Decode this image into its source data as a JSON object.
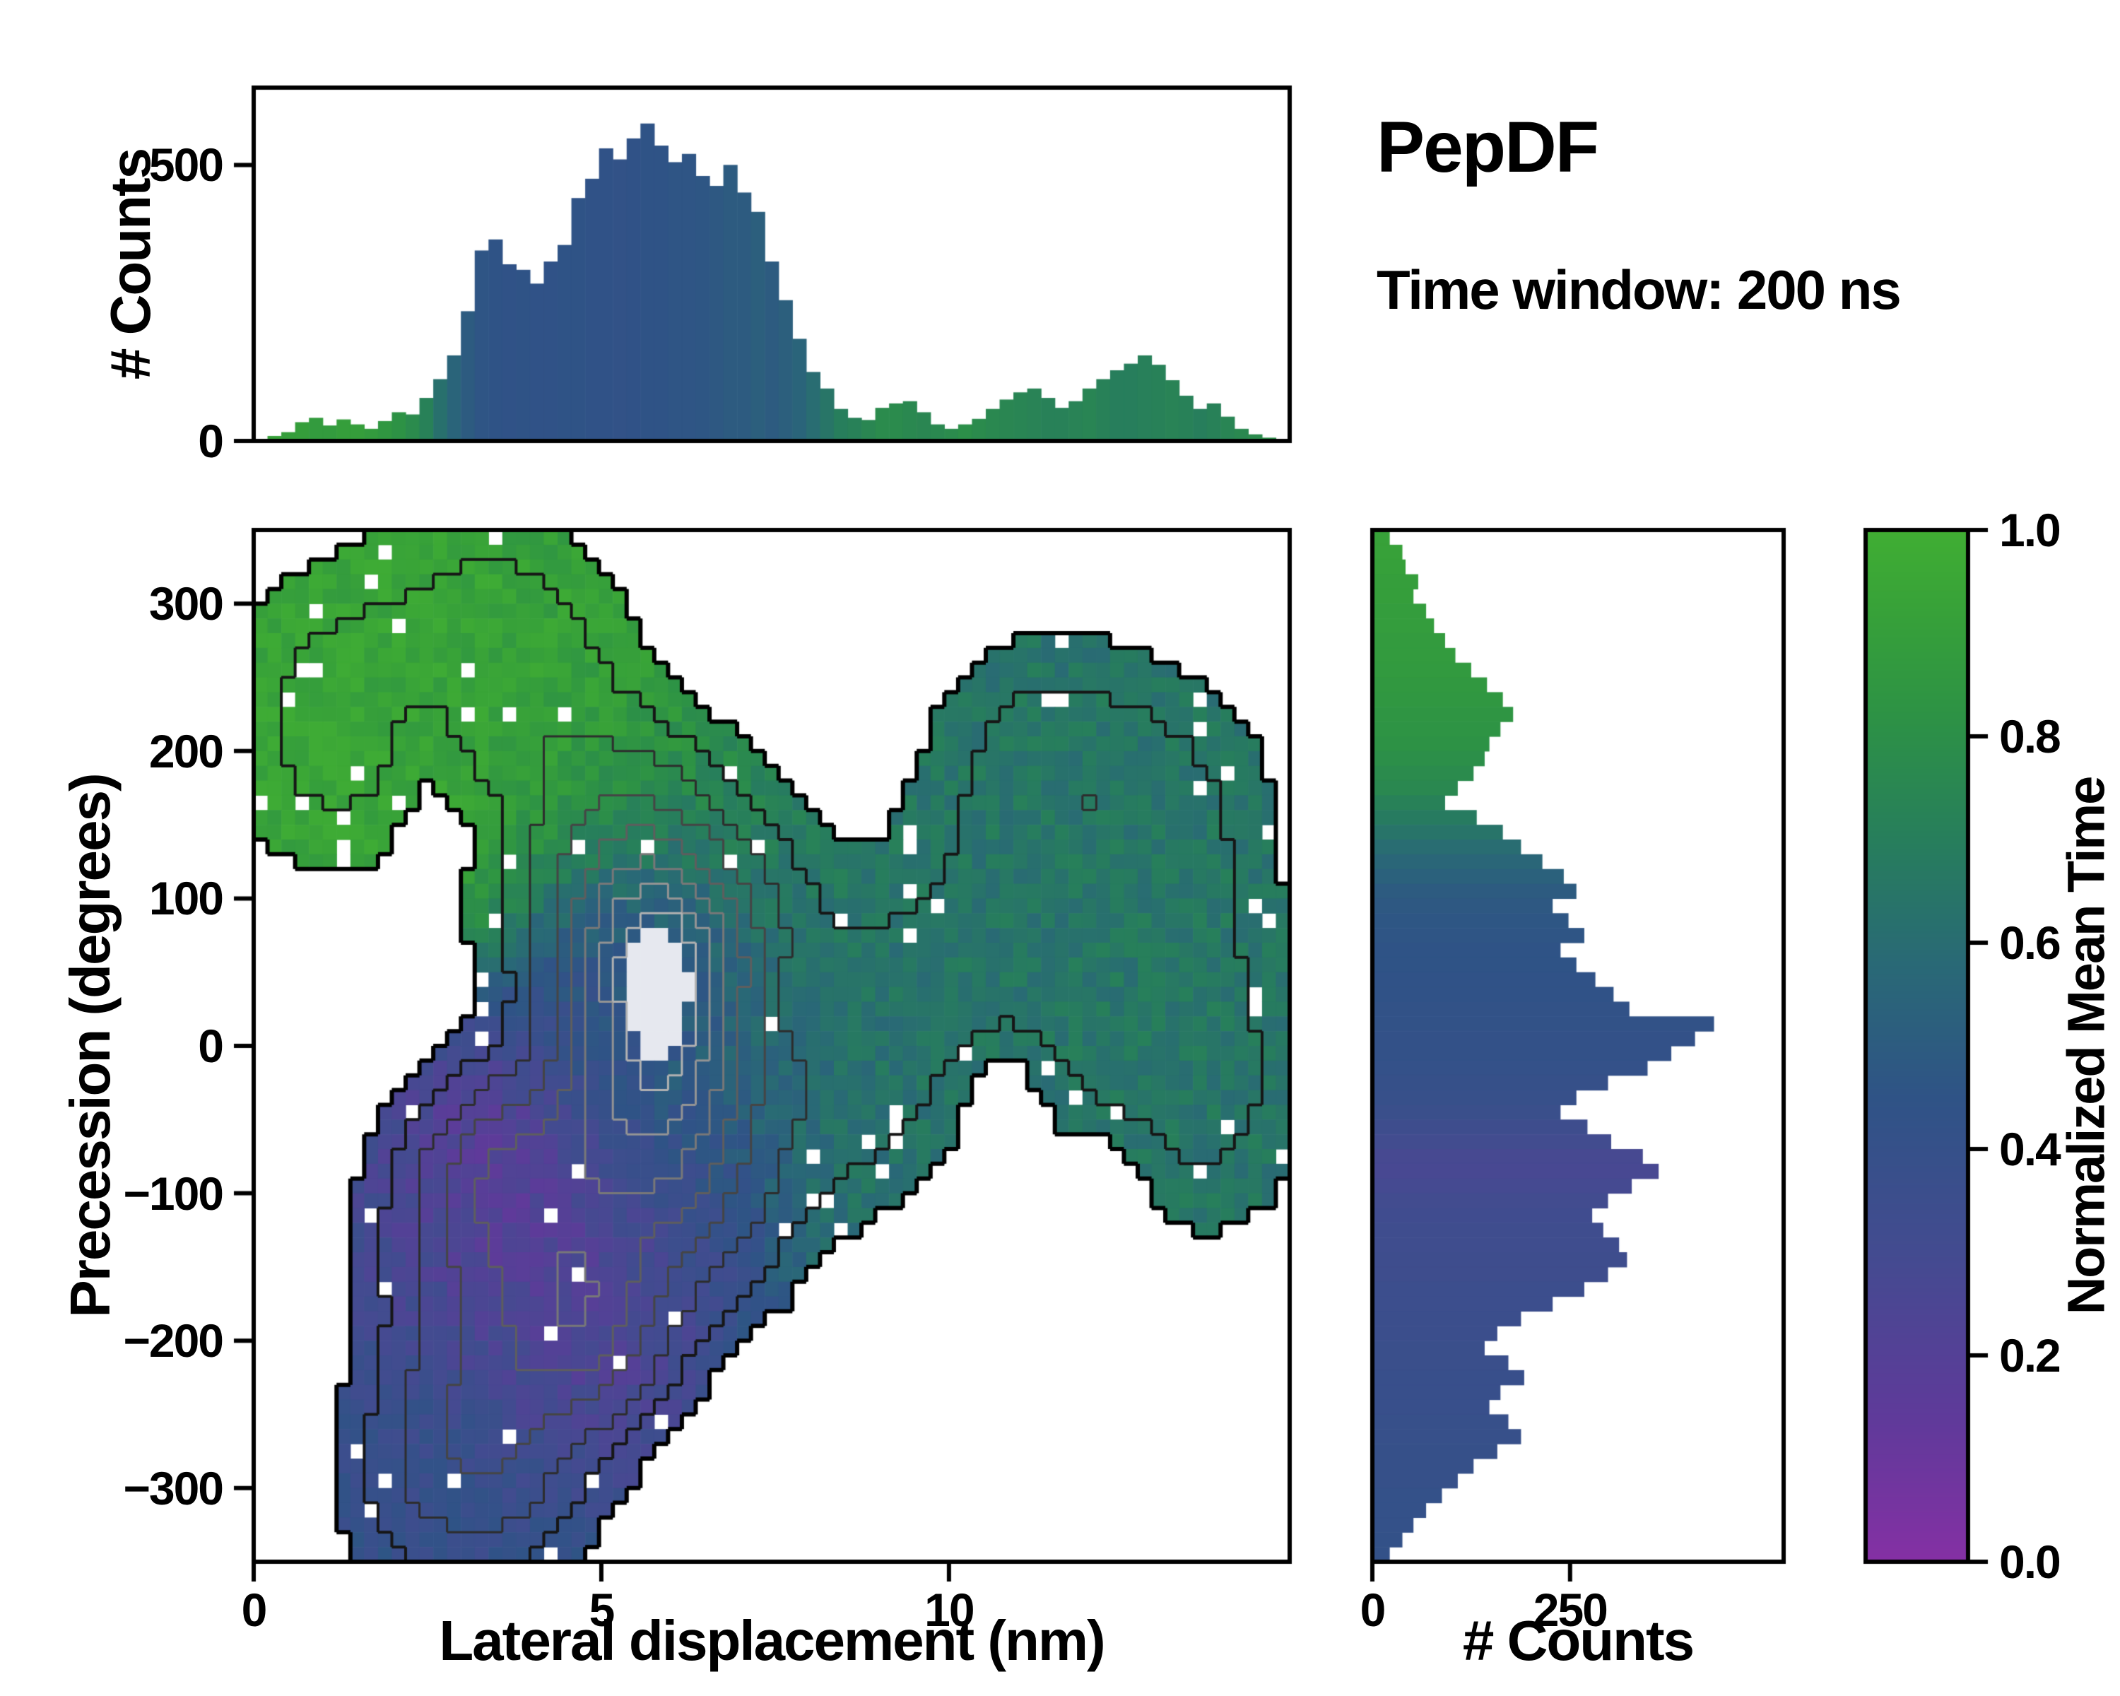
{
  "header": {
    "title": "PepDF",
    "subtitle": "Time window: 200 ns"
  },
  "colors": {
    "background": "#ffffff",
    "axis": "#000000",
    "colormap_stops": [
      [
        0.0,
        "#8530a4"
      ],
      [
        0.14,
        "#5f3a9a"
      ],
      [
        0.3,
        "#434b90"
      ],
      [
        0.45,
        "#2f5386"
      ],
      [
        0.58,
        "#296976"
      ],
      [
        0.7,
        "#277e5c"
      ],
      [
        0.82,
        "#2d9245"
      ],
      [
        0.92,
        "#37a139"
      ],
      [
        1.0,
        "#40ae33"
      ]
    ]
  },
  "axes": {
    "top_hist": {
      "ylabel": "# Counts",
      "yticks": [
        {
          "v": 0,
          "label": "0"
        },
        {
          "v": 500,
          "label": "500"
        }
      ]
    },
    "main": {
      "xlabel": "Lateral displacement (nm)",
      "ylabel": "Precession (degrees)",
      "xticks": [
        {
          "v": 0,
          "label": "0"
        },
        {
          "v": 5,
          "label": "5"
        },
        {
          "v": 10,
          "label": "10"
        }
      ],
      "yticks": [
        {
          "v": 300,
          "label": "300"
        },
        {
          "v": 200,
          "label": "200"
        },
        {
          "v": 100,
          "label": "100"
        },
        {
          "v": 0,
          "label": "0"
        },
        {
          "v": -100,
          "label": "−100"
        },
        {
          "v": -200,
          "label": "−200"
        },
        {
          "v": -300,
          "label": "−300"
        }
      ]
    },
    "right_hist": {
      "xlabel": "# Counts",
      "xticks": [
        {
          "v": 0,
          "label": "0"
        },
        {
          "v": 250,
          "label": "250"
        }
      ]
    },
    "colorbar": {
      "label": "Normalized Mean Time",
      "ticks": [
        {
          "v": 0.0,
          "label": "0.0"
        },
        {
          "v": 0.2,
          "label": "0.2"
        },
        {
          "v": 0.4,
          "label": "0.4"
        },
        {
          "v": 0.6,
          "label": "0.6"
        },
        {
          "v": 0.8,
          "label": "0.8"
        },
        {
          "v": 1.0,
          "label": "1.0"
        }
      ]
    }
  },
  "chart_data": [
    {
      "id": "top_marginal_histogram",
      "type": "bar",
      "orientation": "vertical",
      "ylabel": "# Counts",
      "x_range": [
        0,
        14.9
      ],
      "y_range": [
        0,
        640
      ],
      "bin_width": 0.2,
      "colormap": "normalized_mean_time",
      "counts": [
        3,
        9,
        16,
        34,
        42,
        28,
        39,
        30,
        22,
        36,
        52,
        48,
        78,
        112,
        155,
        235,
        345,
        365,
        320,
        310,
        285,
        325,
        355,
        440,
        475,
        530,
        510,
        548,
        575,
        535,
        505,
        520,
        480,
        462,
        500,
        450,
        415,
        325,
        255,
        185,
        125,
        95,
        58,
        42,
        38,
        60,
        68,
        72,
        52,
        30,
        22,
        30,
        40,
        58,
        75,
        88,
        95,
        78,
        60,
        72,
        95,
        112,
        128,
        140,
        155,
        138,
        110,
        82,
        58,
        68,
        44,
        22,
        12,
        6,
        2
      ],
      "color_values": [
        0.92,
        0.92,
        0.9,
        0.9,
        0.88,
        0.88,
        0.9,
        0.9,
        0.88,
        0.85,
        0.82,
        0.78,
        0.72,
        0.62,
        0.55,
        0.5,
        0.46,
        0.45,
        0.44,
        0.45,
        0.44,
        0.44,
        0.45,
        0.45,
        0.44,
        0.44,
        0.43,
        0.44,
        0.45,
        0.45,
        0.46,
        0.46,
        0.47,
        0.48,
        0.5,
        0.5,
        0.52,
        0.5,
        0.52,
        0.55,
        0.6,
        0.65,
        0.7,
        0.72,
        0.75,
        0.78,
        0.78,
        0.76,
        0.75,
        0.76,
        0.78,
        0.8,
        0.78,
        0.76,
        0.75,
        0.74,
        0.73,
        0.72,
        0.72,
        0.73,
        0.74,
        0.72,
        0.7,
        0.7,
        0.71,
        0.72,
        0.73,
        0.72,
        0.7,
        0.72,
        0.74,
        0.76,
        0.78,
        0.8,
        0.82
      ]
    },
    {
      "id": "joint_density_map",
      "type": "heatmap",
      "xlabel": "Lateral displacement (nm)",
      "ylabel": "Precession (degrees)",
      "colormap": "normalized_mean_time",
      "x_range": [
        0,
        14.9
      ],
      "y_range": [
        -350,
        350
      ],
      "grid": {
        "nx": 75,
        "ny": 70
      },
      "mask_threshold": 0.55,
      "speckle_low_density": 0.05,
      "speckle_high_density": 0.015,
      "white_core_level": 9.8,
      "white_core_color": "#e6e8ef",
      "density_blobs": [
        {
          "x": 5.7,
          "y": 65,
          "sx": 0.85,
          "sy": 55,
          "a": 6.2
        },
        {
          "x": 5.9,
          "y": 0,
          "sx": 1.0,
          "sy": 60,
          "a": 4.2
        },
        {
          "x": 5.5,
          "y": -55,
          "sx": 1.0,
          "sy": 50,
          "a": 3.8
        },
        {
          "x": 3.6,
          "y": -85,
          "sx": 0.75,
          "sy": 45,
          "a": 3.4
        },
        {
          "x": 4.6,
          "y": -150,
          "sx": 0.95,
          "sy": 55,
          "a": 3.6
        },
        {
          "x": 4.8,
          "y": -200,
          "sx": 0.8,
          "sy": 45,
          "a": 3.2
        },
        {
          "x": 3.3,
          "y": -235,
          "sx": 0.8,
          "sy": 50,
          "a": 2.4
        },
        {
          "x": 3.4,
          "y": -300,
          "sx": 0.95,
          "sy": 45,
          "a": 2.2
        },
        {
          "x": 2.7,
          "y": -130,
          "sx": 0.8,
          "sy": 60,
          "a": 1.8
        },
        {
          "x": 6.5,
          "y": -115,
          "sx": 0.9,
          "sy": 50,
          "a": 2.1
        },
        {
          "x": 7.0,
          "y": 55,
          "sx": 0.95,
          "sy": 60,
          "a": 1.9
        },
        {
          "x": 4.6,
          "y": 115,
          "sx": 1.0,
          "sy": 55,
          "a": 1.6
        },
        {
          "x": 2.3,
          "y": 240,
          "sx": 1.7,
          "sy": 72,
          "a": 1.25
        },
        {
          "x": 1.1,
          "y": 205,
          "sx": 0.9,
          "sy": 60,
          "a": 1.0
        },
        {
          "x": 3.6,
          "y": 295,
          "sx": 1.0,
          "sy": 50,
          "a": 1.0
        },
        {
          "x": 4.4,
          "y": 205,
          "sx": 0.95,
          "sy": 55,
          "a": 0.95
        },
        {
          "x": 5.4,
          "y": 170,
          "sx": 0.85,
          "sy": 45,
          "a": 0.95
        },
        {
          "x": 6.3,
          "y": 130,
          "sx": 0.95,
          "sy": 50,
          "a": 1.05
        },
        {
          "x": 12.6,
          "y": 170,
          "sx": 1.25,
          "sy": 60,
          "a": 1.35
        },
        {
          "x": 11.2,
          "y": 195,
          "sx": 1.0,
          "sy": 55,
          "a": 1.2
        },
        {
          "x": 10.3,
          "y": 60,
          "sx": 1.05,
          "sy": 70,
          "a": 1.15
        },
        {
          "x": 11.8,
          "y": 15,
          "sx": 1.35,
          "sy": 70,
          "a": 1.25
        },
        {
          "x": 13.3,
          "y": 60,
          "sx": 1.0,
          "sy": 85,
          "a": 1.15
        },
        {
          "x": 9.0,
          "y": 5,
          "sx": 0.85,
          "sy": 60,
          "a": 1.0
        },
        {
          "x": 13.9,
          "y": -45,
          "sx": 0.9,
          "sy": 60,
          "a": 1.0
        },
        {
          "x": 8.3,
          "y": -55,
          "sx": 0.75,
          "sy": 50,
          "a": 0.95
        },
        {
          "x": 2.1,
          "y": -285,
          "sx": 0.7,
          "sy": 55,
          "a": 1.0
        },
        {
          "x": 10.8,
          "y": -25,
          "sx": 0.55,
          "sy": 38,
          "a": -1.2
        },
        {
          "x": 7.6,
          "y": 32,
          "sx": 0.45,
          "sy": 28,
          "a": -0.95
        },
        {
          "x": 2.4,
          "y": 207,
          "sx": 0.4,
          "sy": 26,
          "a": -0.9
        },
        {
          "x": 12.2,
          "y": -90,
          "sx": 0.5,
          "sy": 32,
          "a": -0.7
        },
        {
          "x": 3.0,
          "y": 150,
          "sx": 0.8,
          "sy": 30,
          "a": -0.7
        }
      ],
      "value_base": {
        "v": 0.55,
        "w": 0.12
      },
      "value_blobs": [
        {
          "x": 2.5,
          "y": 250,
          "sx": 2.2,
          "sy": 90,
          "v": 0.95,
          "w": 3.0
        },
        {
          "x": 1.0,
          "y": 195,
          "sx": 1.0,
          "sy": 60,
          "v": 0.96,
          "w": 2.0
        },
        {
          "x": 4.6,
          "y": 215,
          "sx": 1.2,
          "sy": 60,
          "v": 0.9,
          "w": 2.0
        },
        {
          "x": 5.8,
          "y": 160,
          "sx": 1.2,
          "sy": 50,
          "v": 0.8,
          "w": 1.6
        },
        {
          "x": 7.0,
          "y": 110,
          "sx": 1.3,
          "sy": 60,
          "v": 0.7,
          "w": 1.6
        },
        {
          "x": 11.8,
          "y": 60,
          "sx": 2.9,
          "sy": 160,
          "v": 0.66,
          "w": 2.2
        },
        {
          "x": 9.2,
          "y": -5,
          "sx": 1.3,
          "sy": 80,
          "v": 0.62,
          "w": 1.6
        },
        {
          "x": 5.6,
          "y": 75,
          "sx": 1.0,
          "sy": 55,
          "v": 0.34,
          "w": 2.4
        },
        {
          "x": 6.6,
          "y": -5,
          "sx": 1.2,
          "sy": 60,
          "v": 0.52,
          "w": 1.8
        },
        {
          "x": 5.1,
          "y": -15,
          "sx": 0.8,
          "sy": 40,
          "v": 0.44,
          "w": 1.4
        },
        {
          "x": 3.7,
          "y": -90,
          "sx": 0.9,
          "sy": 60,
          "v": 0.14,
          "w": 2.4
        },
        {
          "x": 5.0,
          "y": -150,
          "sx": 1.0,
          "sy": 60,
          "v": 0.24,
          "w": 2.0
        },
        {
          "x": 4.6,
          "y": -205,
          "sx": 0.9,
          "sy": 50,
          "v": 0.18,
          "w": 2.0
        },
        {
          "x": 6.3,
          "y": -115,
          "sx": 0.8,
          "sy": 50,
          "v": 0.34,
          "w": 1.5
        },
        {
          "x": 3.2,
          "y": -285,
          "sx": 1.2,
          "sy": 60,
          "v": 0.38,
          "w": 2.0
        },
        {
          "x": 2.4,
          "y": -140,
          "sx": 0.7,
          "sy": 60,
          "v": 0.28,
          "w": 1.5
        }
      ],
      "contour_levels": [
        {
          "level": 1.3,
          "color": "#161616",
          "width": 4
        },
        {
          "level": 2.4,
          "color": "#2d2d2d",
          "width": 3
        },
        {
          "level": 3.8,
          "color": "#454545",
          "width": 3
        },
        {
          "level": 5.2,
          "color": "#5e5e5e",
          "width": 3
        },
        {
          "level": 6.6,
          "color": "#787878",
          "width": 3
        },
        {
          "level": 8.0,
          "color": "#949494",
          "width": 3
        },
        {
          "level": 9.2,
          "color": "#b2b2b2",
          "width": 3
        }
      ]
    },
    {
      "id": "right_marginal_histogram",
      "type": "bar",
      "orientation": "horizontal",
      "xlabel": "# Counts",
      "x_range": [
        0,
        520
      ],
      "y_range": [
        -350,
        350
      ],
      "bin_height": 10,
      "colormap": "normalized_mean_time",
      "counts": [
        22,
        38,
        42,
        58,
        52,
        68,
        78,
        92,
        105,
        125,
        145,
        165,
        178,
        162,
        148,
        142,
        128,
        108,
        92,
        132,
        165,
        188,
        215,
        242,
        258,
        228,
        248,
        268,
        238,
        258,
        282,
        305,
        325,
        432,
        408,
        378,
        348,
        298,
        258,
        238,
        272,
        302,
        342,
        362,
        328,
        298,
        278,
        292,
        312,
        322,
        298,
        268,
        228,
        188,
        158,
        142,
        172,
        192,
        162,
        148,
        172,
        188,
        158,
        128,
        108,
        88,
        68,
        52,
        38,
        22
      ],
      "color_values": [
        0.92,
        0.92,
        0.91,
        0.9,
        0.9,
        0.89,
        0.89,
        0.88,
        0.88,
        0.87,
        0.86,
        0.85,
        0.84,
        0.83,
        0.82,
        0.8,
        0.78,
        0.76,
        0.72,
        0.68,
        0.64,
        0.6,
        0.56,
        0.53,
        0.5,
        0.48,
        0.47,
        0.46,
        0.45,
        0.45,
        0.44,
        0.44,
        0.43,
        0.43,
        0.42,
        0.42,
        0.41,
        0.4,
        0.39,
        0.37,
        0.34,
        0.31,
        0.28,
        0.27,
        0.29,
        0.31,
        0.32,
        0.33,
        0.33,
        0.34,
        0.34,
        0.35,
        0.35,
        0.36,
        0.36,
        0.37,
        0.37,
        0.38,
        0.38,
        0.38,
        0.39,
        0.39,
        0.4,
        0.4,
        0.4,
        0.41,
        0.41,
        0.41,
        0.42,
        0.42
      ]
    },
    {
      "id": "colorbar",
      "type": "colorbar",
      "label": "Normalized Mean Time",
      "range": [
        0,
        1
      ]
    }
  ]
}
